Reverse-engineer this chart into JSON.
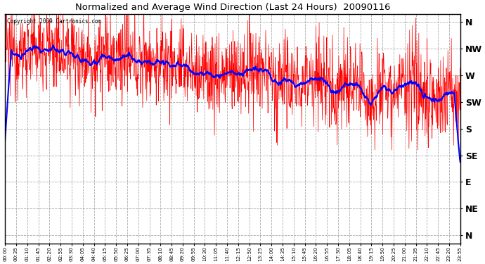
{
  "title": "Normalized and Average Wind Direction (Last 24 Hours)  20090116",
  "copyright_text": "Copyright 2009 Cartronics.com",
  "background_color": "#ffffff",
  "plot_bg_color": "#ffffff",
  "grid_color": "#aaaaaa",
  "red_line_color": "#ff0000",
  "blue_line_color": "#0000ff",
  "ytick_labels": [
    "N",
    "NW",
    "W",
    "SW",
    "S",
    "SE",
    "E",
    "NE",
    "N"
  ],
  "ytick_values": [
    8,
    7,
    6,
    5,
    4,
    3,
    2,
    1,
    0
  ],
  "ylim": [
    -0.3,
    8.3
  ],
  "xtick_labels": [
    "00:00",
    "00:35",
    "01:10",
    "01:45",
    "02:20",
    "02:55",
    "03:30",
    "04:05",
    "04:40",
    "05:15",
    "05:50",
    "06:25",
    "07:00",
    "07:35",
    "08:10",
    "08:45",
    "09:20",
    "09:55",
    "10:30",
    "11:05",
    "11:40",
    "12:15",
    "12:50",
    "13:25",
    "14:00",
    "14:35",
    "15:10",
    "15:45",
    "16:20",
    "16:55",
    "17:30",
    "18:05",
    "18:40",
    "19:15",
    "19:50",
    "20:25",
    "21:00",
    "21:35",
    "22:10",
    "22:45",
    "23:20",
    "23:55"
  ],
  "n_points": 1440,
  "avg_window": 40
}
